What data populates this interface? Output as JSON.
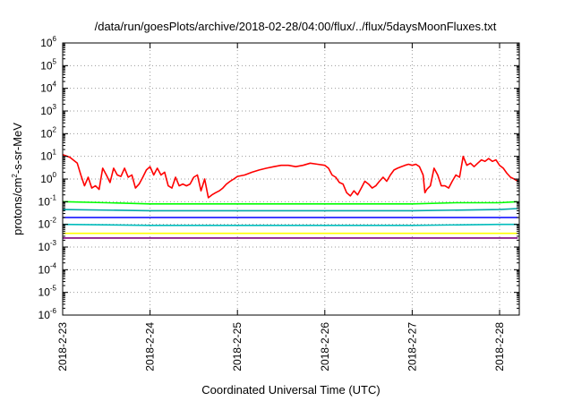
{
  "chart_data": {
    "type": "line",
    "title": "/data/run/goesPlots/archive/2018-02-28/04:00/flux/../flux/5daysMoonFluxes.txt",
    "xlabel": "Coordinated Universal Time (UTC)",
    "ylabel": "protons/cm2-s-sr-MeV",
    "ylabel_parts": [
      "protons/cm",
      "2",
      "-s-sr-MeV"
    ],
    "y_scale": "log",
    "ylim": [
      1e-06,
      1000000.0
    ],
    "y_ticks": [
      {
        "value": 1e-06,
        "base": "10",
        "exp": "-6"
      },
      {
        "value": 1e-05,
        "base": "10",
        "exp": "-5"
      },
      {
        "value": 0.0001,
        "base": "10",
        "exp": "-4"
      },
      {
        "value": 0.001,
        "base": "10",
        "exp": "-3"
      },
      {
        "value": 0.01,
        "base": "10",
        "exp": "-2"
      },
      {
        "value": 0.1,
        "base": "10",
        "exp": "-1"
      },
      {
        "value": 1.0,
        "base": "10",
        "exp": "0"
      },
      {
        "value": 10.0,
        "base": "10",
        "exp": "1"
      },
      {
        "value": 100.0,
        "base": "10",
        "exp": "2"
      },
      {
        "value": 1000.0,
        "base": "10",
        "exp": "3"
      },
      {
        "value": 10000.0,
        "base": "10",
        "exp": "4"
      },
      {
        "value": 100000.0,
        "base": "10",
        "exp": "5"
      },
      {
        "value": 1000000.0,
        "base": "10",
        "exp": "6"
      }
    ],
    "x_type": "date",
    "xlim": [
      "2018-02-23T00:00",
      "2018-02-28T05:00"
    ],
    "x_ticks": [
      "2018-2-23",
      "2018-2-24",
      "2018-2-25",
      "2018-2-26",
      "2018-2-27",
      "2018-2-28"
    ],
    "grid": true,
    "series": [
      {
        "color": "#ff0000",
        "points": [
          [
            "2018-02-23T00:00",
            12
          ],
          [
            "2018-02-23T02:00",
            9
          ],
          [
            "2018-02-23T04:00",
            5
          ],
          [
            "2018-02-23T05:00",
            1.5
          ],
          [
            "2018-02-23T06:00",
            0.5
          ],
          [
            "2018-02-23T07:00",
            1.2
          ],
          [
            "2018-02-23T08:00",
            0.4
          ],
          [
            "2018-02-23T09:00",
            0.5
          ],
          [
            "2018-02-23T10:00",
            0.35
          ],
          [
            "2018-02-23T11:00",
            3
          ],
          [
            "2018-02-23T12:00",
            1.5
          ],
          [
            "2018-02-23T13:00",
            0.7
          ],
          [
            "2018-02-23T14:00",
            3
          ],
          [
            "2018-02-23T15:00",
            1.5
          ],
          [
            "2018-02-23T16:00",
            1.3
          ],
          [
            "2018-02-23T17:00",
            3
          ],
          [
            "2018-02-23T18:00",
            1.2
          ],
          [
            "2018-02-23T19:00",
            1.5
          ],
          [
            "2018-02-23T20:00",
            0.4
          ],
          [
            "2018-02-23T21:00",
            0.6
          ],
          [
            "2018-02-23T22:00",
            1.2
          ],
          [
            "2018-02-23T23:00",
            2.5
          ],
          [
            "2018-02-24T00:00",
            3.5
          ],
          [
            "2018-02-24T01:00",
            1.5
          ],
          [
            "2018-02-24T02:00",
            3
          ],
          [
            "2018-02-24T03:00",
            1.5
          ],
          [
            "2018-02-24T04:00",
            2
          ],
          [
            "2018-02-24T05:00",
            0.5
          ],
          [
            "2018-02-24T06:00",
            0.4
          ],
          [
            "2018-02-24T07:00",
            1.2
          ],
          [
            "2018-02-24T08:00",
            0.5
          ],
          [
            "2018-02-24T09:00",
            0.6
          ],
          [
            "2018-02-24T10:00",
            0.5
          ],
          [
            "2018-02-24T11:00",
            0.6
          ],
          [
            "2018-02-24T12:00",
            1.2
          ],
          [
            "2018-02-24T13:00",
            1.5
          ],
          [
            "2018-02-24T14:00",
            0.3
          ],
          [
            "2018-02-24T15:00",
            1
          ],
          [
            "2018-02-24T16:00",
            0.15
          ],
          [
            "2018-02-24T17:00",
            0.2
          ],
          [
            "2018-02-24T18:00",
            0.25
          ],
          [
            "2018-02-24T19:00",
            0.3
          ],
          [
            "2018-02-24T20:00",
            0.4
          ],
          [
            "2018-02-24T21:00",
            0.6
          ],
          [
            "2018-02-24T22:00",
            0.8
          ],
          [
            "2018-02-24T23:00",
            1
          ],
          [
            "2018-02-25T00:00",
            1.3
          ],
          [
            "2018-02-25T02:00",
            1.5
          ],
          [
            "2018-02-25T04:00",
            2
          ],
          [
            "2018-02-25T06:00",
            2.5
          ],
          [
            "2018-02-25T08:00",
            3
          ],
          [
            "2018-02-25T10:00",
            3.5
          ],
          [
            "2018-02-25T12:00",
            4
          ],
          [
            "2018-02-25T14:00",
            4
          ],
          [
            "2018-02-25T16:00",
            3.5
          ],
          [
            "2018-02-25T18:00",
            4
          ],
          [
            "2018-02-25T20:00",
            5
          ],
          [
            "2018-02-25T22:00",
            4.5
          ],
          [
            "2018-02-26T00:00",
            4
          ],
          [
            "2018-02-26T01:00",
            3
          ],
          [
            "2018-02-26T02:00",
            1.5
          ],
          [
            "2018-02-26T03:00",
            1.2
          ],
          [
            "2018-02-26T04:00",
            0.7
          ],
          [
            "2018-02-26T05:00",
            0.6
          ],
          [
            "2018-02-26T06:00",
            0.25
          ],
          [
            "2018-02-26T07:00",
            0.18
          ],
          [
            "2018-02-26T08:00",
            0.3
          ],
          [
            "2018-02-26T09:00",
            0.2
          ],
          [
            "2018-02-26T10:00",
            0.4
          ],
          [
            "2018-02-26T11:00",
            0.8
          ],
          [
            "2018-02-26T12:00",
            0.6
          ],
          [
            "2018-02-26T13:00",
            0.4
          ],
          [
            "2018-02-26T14:00",
            0.5
          ],
          [
            "2018-02-26T15:00",
            0.8
          ],
          [
            "2018-02-26T16:00",
            1.2
          ],
          [
            "2018-02-26T17:00",
            0.8
          ],
          [
            "2018-02-26T18:00",
            1.5
          ],
          [
            "2018-02-26T19:00",
            2.5
          ],
          [
            "2018-02-26T20:00",
            3
          ],
          [
            "2018-02-26T21:00",
            3.5
          ],
          [
            "2018-02-26T22:00",
            4
          ],
          [
            "2018-02-26T23:00",
            4.5
          ],
          [
            "2018-02-27T00:00",
            4
          ],
          [
            "2018-02-27T01:00",
            4.5
          ],
          [
            "2018-02-27T02:00",
            3.5
          ],
          [
            "2018-02-27T03:00",
            1.5
          ],
          [
            "2018-02-27T03:30",
            0.25
          ],
          [
            "2018-02-27T04:00",
            0.35
          ],
          [
            "2018-02-27T05:00",
            0.5
          ],
          [
            "2018-02-27T06:00",
            3
          ],
          [
            "2018-02-27T07:00",
            1.5
          ],
          [
            "2018-02-27T08:00",
            0.5
          ],
          [
            "2018-02-27T09:00",
            0.5
          ],
          [
            "2018-02-27T10:00",
            0.4
          ],
          [
            "2018-02-27T11:00",
            0.8
          ],
          [
            "2018-02-27T12:00",
            1.5
          ],
          [
            "2018-02-27T13:00",
            1.2
          ],
          [
            "2018-02-27T14:00",
            10
          ],
          [
            "2018-02-27T15:00",
            4
          ],
          [
            "2018-02-27T16:00",
            5
          ],
          [
            "2018-02-27T17:00",
            3.5
          ],
          [
            "2018-02-27T18:00",
            5
          ],
          [
            "2018-02-27T19:00",
            7
          ],
          [
            "2018-02-27T20:00",
            6
          ],
          [
            "2018-02-27T21:00",
            8
          ],
          [
            "2018-02-27T22:00",
            6
          ],
          [
            "2018-02-27T23:00",
            7
          ],
          [
            "2018-02-28T00:00",
            4
          ],
          [
            "2018-02-28T01:00",
            3
          ],
          [
            "2018-02-28T02:00",
            1.8
          ],
          [
            "2018-02-28T03:00",
            1.2
          ],
          [
            "2018-02-28T04:00",
            1
          ],
          [
            "2018-02-28T05:00",
            0.8
          ]
        ]
      },
      {
        "color": "#00ff00",
        "points": [
          [
            "2018-02-23T00:00",
            0.1
          ],
          [
            "2018-02-23T12:00",
            0.09
          ],
          [
            "2018-02-24T00:00",
            0.08
          ],
          [
            "2018-02-24T12:00",
            0.08
          ],
          [
            "2018-02-25T00:00",
            0.08
          ],
          [
            "2018-02-25T12:00",
            0.08
          ],
          [
            "2018-02-26T00:00",
            0.08
          ],
          [
            "2018-02-26T12:00",
            0.08
          ],
          [
            "2018-02-27T00:00",
            0.08
          ],
          [
            "2018-02-27T12:00",
            0.09
          ],
          [
            "2018-02-28T00:00",
            0.09
          ],
          [
            "2018-02-28T05:00",
            0.1
          ]
        ]
      },
      {
        "color": "#00a8a8",
        "points": [
          [
            "2018-02-23T00:00",
            0.045
          ],
          [
            "2018-02-24T00:00",
            0.04
          ],
          [
            "2018-02-25T00:00",
            0.04
          ],
          [
            "2018-02-26T00:00",
            0.04
          ],
          [
            "2018-02-27T00:00",
            0.04
          ],
          [
            "2018-02-28T00:00",
            0.045
          ],
          [
            "2018-02-28T05:00",
            0.05
          ]
        ]
      },
      {
        "color": "#0000ff",
        "points": [
          [
            "2018-02-23T00:00",
            0.02
          ],
          [
            "2018-02-24T00:00",
            0.02
          ],
          [
            "2018-02-25T00:00",
            0.02
          ],
          [
            "2018-02-26T00:00",
            0.02
          ],
          [
            "2018-02-27T00:00",
            0.02
          ],
          [
            "2018-02-28T00:00",
            0.02
          ],
          [
            "2018-02-28T05:00",
            0.02
          ]
        ]
      },
      {
        "color": "#00bcbc",
        "points": [
          [
            "2018-02-23T00:00",
            0.01
          ],
          [
            "2018-02-24T00:00",
            0.009
          ],
          [
            "2018-02-25T00:00",
            0.009
          ],
          [
            "2018-02-26T00:00",
            0.009
          ],
          [
            "2018-02-27T00:00",
            0.009
          ],
          [
            "2018-02-28T00:00",
            0.01
          ],
          [
            "2018-02-28T05:00",
            0.01
          ]
        ]
      },
      {
        "color": "#ffff00",
        "points": [
          [
            "2018-02-23T00:00",
            0.004
          ],
          [
            "2018-02-24T00:00",
            0.004
          ],
          [
            "2018-02-25T00:00",
            0.004
          ],
          [
            "2018-02-26T00:00",
            0.004
          ],
          [
            "2018-02-27T00:00",
            0.004
          ],
          [
            "2018-02-28T00:00",
            0.004
          ],
          [
            "2018-02-28T05:00",
            0.004
          ]
        ]
      },
      {
        "color": "#800080",
        "points": [
          [
            "2018-02-23T00:00",
            0.0025
          ],
          [
            "2018-02-24T00:00",
            0.0025
          ],
          [
            "2018-02-25T00:00",
            0.0025
          ],
          [
            "2018-02-26T00:00",
            0.0025
          ],
          [
            "2018-02-27T00:00",
            0.0025
          ],
          [
            "2018-02-28T00:00",
            0.0025
          ],
          [
            "2018-02-28T05:00",
            0.0025
          ]
        ]
      }
    ]
  }
}
